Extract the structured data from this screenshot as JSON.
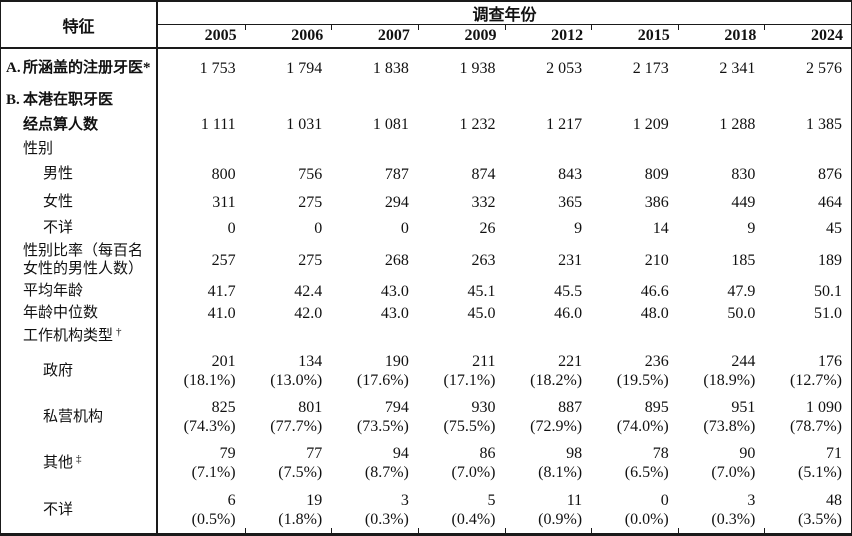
{
  "table": {
    "corner_label": "特征",
    "group_header": "调查年份",
    "years": [
      "2005",
      "2006",
      "2007",
      "2009",
      "2012",
      "2015",
      "2018",
      "2024"
    ],
    "rows": [
      {
        "prefix": "A.",
        "label": "所涵盖的注册牙医*",
        "sup": "",
        "indent": 0,
        "bold": true,
        "values": [
          "1 753",
          "1 794",
          "1 838",
          "1 938",
          "2 053",
          "2 173",
          "2 341",
          "2 576"
        ],
        "pcts": null
      },
      {
        "prefix": "B.",
        "label": "本港在职牙医",
        "sup": "",
        "indent": 0,
        "bold": true,
        "values": [],
        "pcts": null
      },
      {
        "prefix": "",
        "label": "经点算人数",
        "sup": "",
        "indent": 1,
        "bold": true,
        "values": [
          "1 111",
          "1 031",
          "1 081",
          "1 232",
          "1 217",
          "1 209",
          "1 288",
          "1 385"
        ],
        "pcts": null
      },
      {
        "prefix": "",
        "label": "性别",
        "sup": "",
        "indent": 1,
        "bold": false,
        "values": [],
        "pcts": null
      },
      {
        "prefix": "",
        "label": "男性",
        "sup": "",
        "indent": 2,
        "bold": false,
        "values": [
          "800",
          "756",
          "787",
          "874",
          "843",
          "809",
          "830",
          "876"
        ],
        "pcts": null
      },
      {
        "prefix": "",
        "label": "女性",
        "sup": "",
        "indent": 2,
        "bold": false,
        "values": [
          "311",
          "275",
          "294",
          "332",
          "365",
          "386",
          "449",
          "464"
        ],
        "pcts": null
      },
      {
        "prefix": "",
        "label": "不详",
        "sup": "",
        "indent": 2,
        "bold": false,
        "values": [
          "0",
          "0",
          "0",
          "26",
          "9",
          "14",
          "9",
          "45"
        ],
        "pcts": null
      },
      {
        "prefix": "",
        "label": "性别比率（每百名女性的男性人数）",
        "sup": "",
        "indent": 1,
        "bold": false,
        "values": [
          "257",
          "275",
          "268",
          "263",
          "231",
          "210",
          "185",
          "189"
        ],
        "pcts": null
      },
      {
        "prefix": "",
        "label": "平均年龄",
        "sup": "",
        "indent": 1,
        "bold": false,
        "values": [
          "41.7",
          "42.4",
          "43.0",
          "45.1",
          "45.5",
          "46.6",
          "47.9",
          "50.1"
        ],
        "pcts": null
      },
      {
        "prefix": "",
        "label": "年龄中位数",
        "sup": "",
        "indent": 1,
        "bold": false,
        "values": [
          "41.0",
          "42.0",
          "43.0",
          "45.0",
          "46.0",
          "48.0",
          "50.0",
          "51.0"
        ],
        "pcts": null
      },
      {
        "prefix": "",
        "label": "工作机构类型",
        "sup": "†",
        "indent": 1,
        "bold": false,
        "values": [],
        "pcts": null
      },
      {
        "prefix": "",
        "label": "政府",
        "sup": "",
        "indent": 2,
        "bold": false,
        "values": [
          "201",
          "134",
          "190",
          "211",
          "221",
          "236",
          "244",
          "176"
        ],
        "pcts": [
          "(18.1%)",
          "(13.0%)",
          "(17.6%)",
          "(17.1%)",
          "(18.2%)",
          "(19.5%)",
          "(18.9%)",
          "(12.7%)"
        ]
      },
      {
        "prefix": "",
        "label": "私营机构",
        "sup": "",
        "indent": 2,
        "bold": false,
        "values": [
          "825",
          "801",
          "794",
          "930",
          "887",
          "895",
          "951",
          "1 090"
        ],
        "pcts": [
          "(74.3%)",
          "(77.7%)",
          "(73.5%)",
          "(75.5%)",
          "(72.9%)",
          "(74.0%)",
          "(73.8%)",
          "(78.7%)"
        ]
      },
      {
        "prefix": "",
        "label": "其他",
        "sup": "‡",
        "indent": 2,
        "bold": false,
        "values": [
          "79",
          "77",
          "94",
          "86",
          "98",
          "78",
          "90",
          "71"
        ],
        "pcts": [
          "(7.1%)",
          "(7.5%)",
          "(8.7%)",
          "(7.0%)",
          "(8.1%)",
          "(6.5%)",
          "(7.0%)",
          "(5.1%)"
        ]
      },
      {
        "prefix": "",
        "label": "不详",
        "sup": "",
        "indent": 2,
        "bold": false,
        "values": [
          "6",
          "19",
          "3",
          "5",
          "11",
          "0",
          "3",
          "48"
        ],
        "pcts": [
          "(0.5%)",
          "(1.8%)",
          "(0.3%)",
          "(0.4%)",
          "(0.9%)",
          "(0.0%)",
          "(0.3%)",
          "(3.5%)"
        ]
      }
    ]
  },
  "chart_data": {
    "type": "table",
    "title": "调查年份",
    "columns": [
      "特征",
      "2005",
      "2006",
      "2007",
      "2009",
      "2012",
      "2015",
      "2018",
      "2024"
    ]
  }
}
